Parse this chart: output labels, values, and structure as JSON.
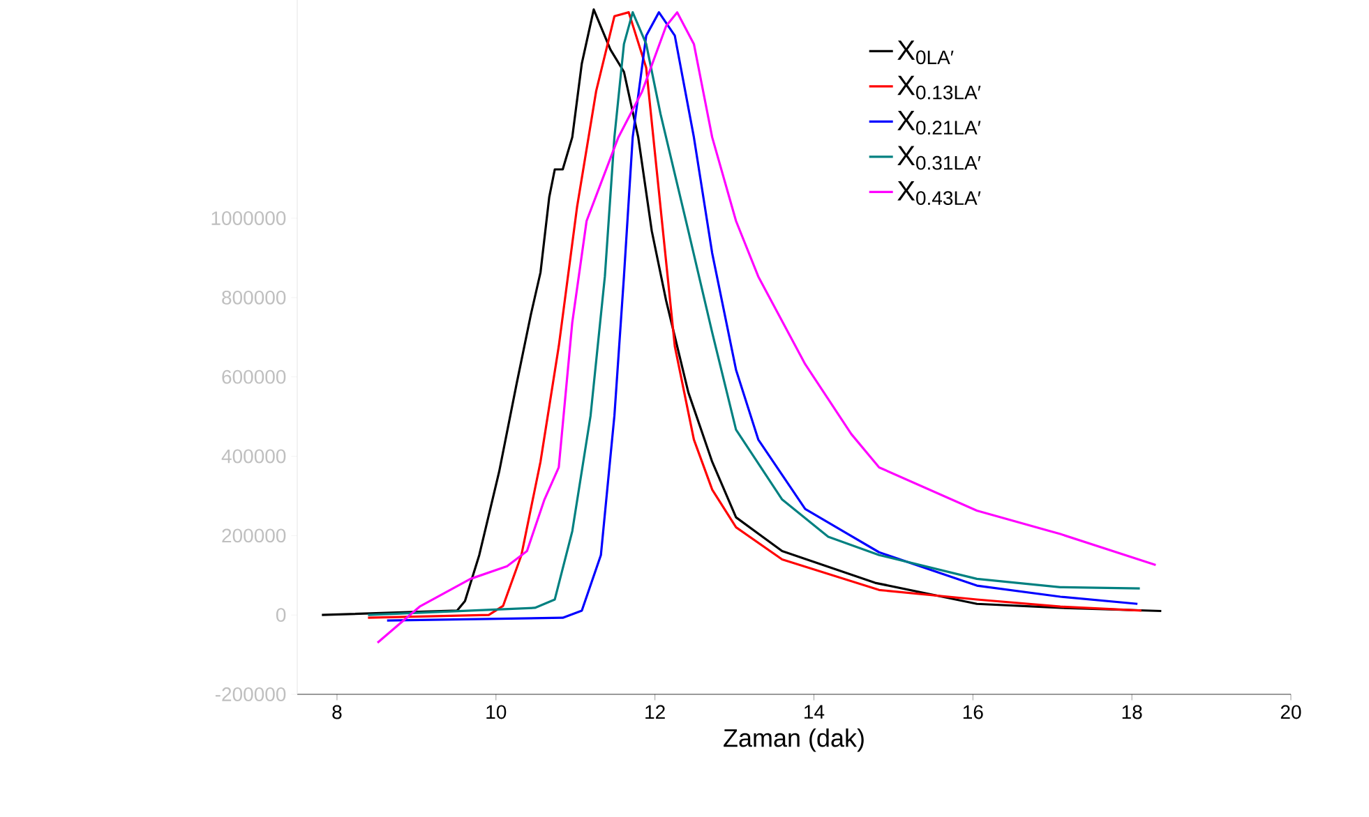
{
  "chart_data": {
    "type": "line",
    "xlabel": "Zaman (dak)",
    "xlim": [
      7.5,
      20
    ],
    "xticks": [
      8,
      10,
      12,
      14,
      16,
      18,
      20
    ],
    "ylim": [
      -200000,
      1550000
    ],
    "yticks": [
      -200000,
      0,
      200000,
      400000,
      600000,
      800000,
      1000000
    ],
    "legend": "top right",
    "grid": false,
    "marker": "none",
    "line_style": "solid",
    "series": [
      {
        "name": "X$_{0LA′}$",
        "color": "#000000",
        "x": [
          7.81,
          9.51,
          9.61,
          9.79,
          10.04,
          10.26,
          10.44,
          10.56,
          10.67,
          10.74,
          10.84,
          10.96,
          11.08,
          11.23,
          11.44,
          11.61,
          11.79,
          11.96,
          12.14,
          12.42,
          12.72,
          13.02,
          13.6,
          14.77,
          16.05,
          17.1,
          18.37
        ],
        "values": [
          0,
          11000,
          35000,
          151000,
          361000,
          583000,
          758000,
          863000,
          1053000,
          1123000,
          1123000,
          1204000,
          1390000,
          1526000,
          1425000,
          1369000,
          1204000,
          968000,
          793000,
          561000,
          386000,
          246000,
          161000,
          81000,
          28000,
          18000,
          10000
        ]
      },
      {
        "name": "X$_{0.13LA′}$",
        "color": "#ff0000",
        "x": [
          8.39,
          9.91,
          10.09,
          10.32,
          10.56,
          10.79,
          11.02,
          11.26,
          11.49,
          11.67,
          11.89,
          12.07,
          12.25,
          12.49,
          12.72,
          13.02,
          13.6,
          14.82,
          16.05,
          17.1,
          18.12
        ],
        "values": [
          -7000,
          0,
          23000,
          151000,
          386000,
          677000,
          1028000,
          1320000,
          1509000,
          1519000,
          1379000,
          1028000,
          677000,
          442000,
          316000,
          221000,
          140000,
          63000,
          39000,
          21000,
          11000
        ]
      },
      {
        "name": "X$_{0.21LA′}$",
        "color": "#0000ff",
        "x": [
          8.63,
          10.84,
          11.08,
          11.32,
          11.49,
          11.61,
          11.72,
          11.89,
          12.05,
          12.25,
          12.49,
          12.72,
          13.02,
          13.3,
          13.89,
          14.82,
          16.05,
          17.1,
          18.07
        ],
        "values": [
          -14000,
          -7000,
          11000,
          151000,
          502000,
          853000,
          1204000,
          1460000,
          1519000,
          1460000,
          1204000,
          912000,
          618000,
          442000,
          267000,
          158000,
          74000,
          46000,
          28000
        ]
      },
      {
        "name": "X$_{0.31LA′}$",
        "color": "#008080",
        "x": [
          8.39,
          10.49,
          10.74,
          10.96,
          11.19,
          11.37,
          11.49,
          11.61,
          11.72,
          11.89,
          12.07,
          12.42,
          12.72,
          13.02,
          13.6,
          14.18,
          14.82,
          16.05,
          17.1,
          18.1
        ],
        "values": [
          0,
          18000,
          39000,
          211000,
          502000,
          853000,
          1204000,
          1439000,
          1519000,
          1439000,
          1263000,
          968000,
          712000,
          467000,
          291000,
          197000,
          151000,
          91000,
          70000,
          67000
        ]
      },
      {
        "name": "X$_{0.43LA′}$",
        "color": "#ff00ff",
        "x": [
          8.51,
          9.04,
          9.68,
          10.14,
          10.39,
          10.61,
          10.79,
          10.96,
          11.14,
          11.32,
          11.54,
          11.84,
          12.14,
          12.28,
          12.49,
          12.72,
          13.02,
          13.3,
          13.89,
          14.47,
          14.82,
          16.05,
          17.1,
          18.3
        ],
        "values": [
          -70000,
          21000,
          91000,
          123000,
          161000,
          291000,
          372000,
          737000,
          993000,
          1088000,
          1204000,
          1320000,
          1484000,
          1519000,
          1439000,
          1204000,
          993000,
          853000,
          632000,
          456000,
          372000,
          263000,
          204000,
          126000
        ]
      }
    ]
  }
}
